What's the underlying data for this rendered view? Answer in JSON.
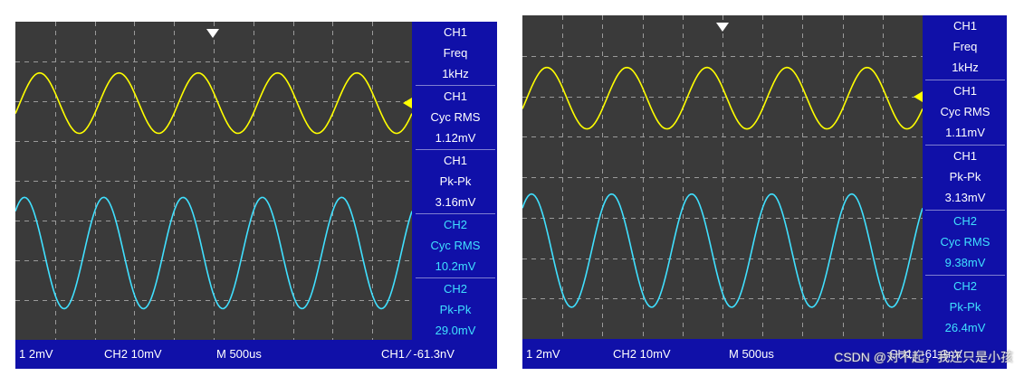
{
  "scopes": [
    {
      "id": "left",
      "measurements": [
        {
          "channel": "CH1",
          "type": "Freq",
          "value": "1kHz",
          "color": "#ffffff"
        },
        {
          "channel": "CH1",
          "type": "Cyc RMS",
          "value": "1.12mV",
          "color": "#ffffff"
        },
        {
          "channel": "CH1",
          "type": "Pk-Pk",
          "value": "3.16mV",
          "color": "#ffffff"
        },
        {
          "channel": "CH2",
          "type": "Cyc RMS",
          "value": "10.2mV",
          "color": "#40e0ff"
        },
        {
          "channel": "CH2",
          "type": "Pk-Pk",
          "value": "29.0mV",
          "color": "#40e0ff"
        }
      ],
      "status": {
        "ch1_scale": "1 2mV",
        "ch2_scale": "CH2  10mV",
        "timebase": "M 500us",
        "trigger": "CH1 ⁄ -61.3nV"
      }
    },
    {
      "id": "right",
      "measurements": [
        {
          "channel": "CH1",
          "type": "Freq",
          "value": "1kHz",
          "color": "#ffffff"
        },
        {
          "channel": "CH1",
          "type": "Cyc RMS",
          "value": "1.11mV",
          "color": "#ffffff"
        },
        {
          "channel": "CH1",
          "type": "Pk-Pk",
          "value": "3.13mV",
          "color": "#ffffff"
        },
        {
          "channel": "CH2",
          "type": "Cyc RMS",
          "value": "9.38mV",
          "color": "#40e0ff"
        },
        {
          "channel": "CH2",
          "type": "Pk-Pk",
          "value": "26.4mV",
          "color": "#40e0ff"
        }
      ],
      "status": {
        "ch1_scale": "1 2mV",
        "ch2_scale": "CH2  10mV",
        "timebase": "M 500us",
        "trigger": "CH1 ⁄ -61.3nV"
      }
    }
  ],
  "watermark": "CSDN @对不起，我还只是小孩",
  "colors": {
    "ch1_trace": "#ffff00",
    "ch2_trace": "#40e0ff",
    "screen_bg": "#3a3a3a",
    "panel_bg": "#1010a8"
  },
  "icons": [
    "trigger-position-marker-icon",
    "trigger-level-marker-icon"
  ]
}
